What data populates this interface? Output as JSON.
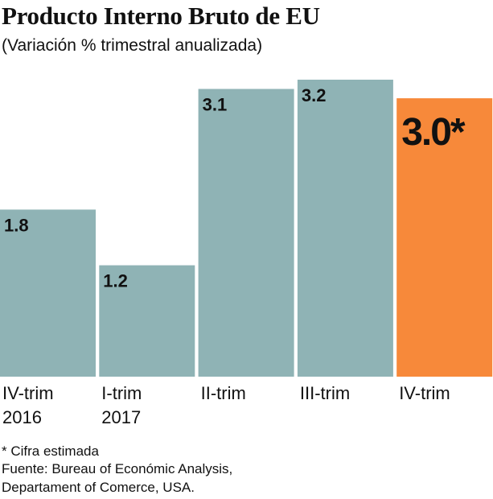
{
  "title": "Producto Interno Bruto de EU",
  "subtitle": "(Variación % trimestral anualizada)",
  "chart_data": {
    "type": "bar",
    "title": "Producto Interno Bruto de EU",
    "subtitle": "(Variación % trimestral anualizada)",
    "categories": [
      [
        "IV-trim",
        "2016"
      ],
      [
        "I-trim",
        "2017"
      ],
      [
        "II-trim"
      ],
      [
        "III-trim"
      ],
      [
        "IV-trim"
      ]
    ],
    "values": [
      1.8,
      1.2,
      3.1,
      3.2,
      3.0
    ],
    "data_labels": [
      "1.8",
      "1.2",
      "3.1",
      "3.2",
      "3.0*"
    ],
    "highlight_index": 4,
    "colors": {
      "bar": "#8fb3b5",
      "highlight": "#f7893a"
    },
    "ylim": [
      0,
      3.2
    ],
    "xlabel": "",
    "ylabel": "",
    "grid": false
  },
  "notes": {
    "estimate": "* Cifra estimada",
    "source_line1": "Fuente: Bureau of Económic Analysis,",
    "source_line2": "Departament of Comerce, USA."
  }
}
